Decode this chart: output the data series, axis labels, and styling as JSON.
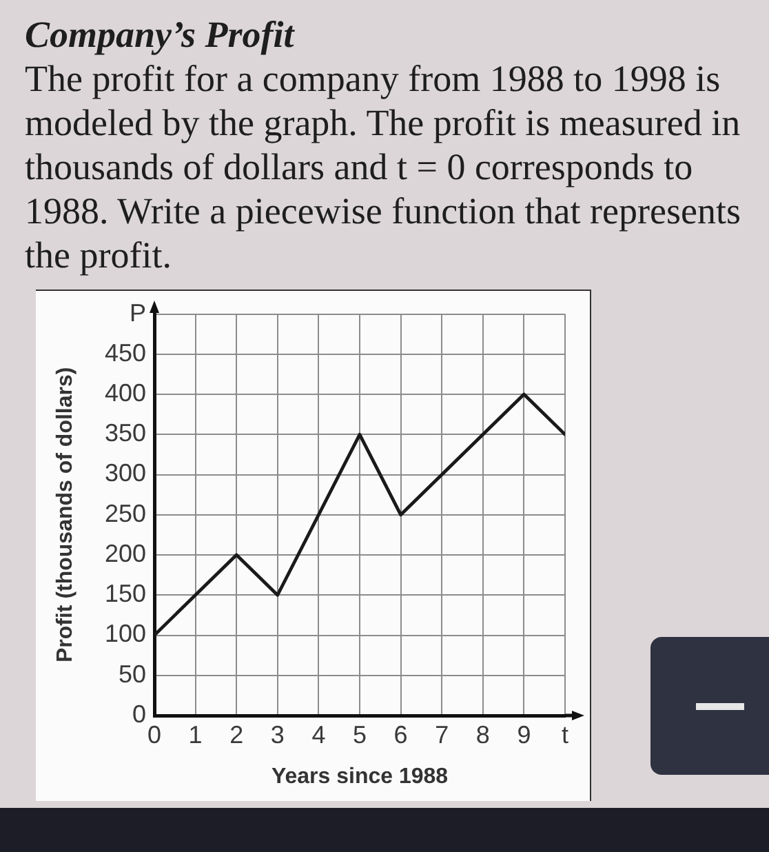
{
  "chart_data": {
    "type": "line",
    "title": "Company’s Profit",
    "subtitle": "The profit for a company from 1988 to 1998 is modeled by the graph. The profit is measured in thousands of dollars and t = 0 corresponds to 1988. Write a piecewise function that represents the profit.",
    "xlabel": "Years since 1988",
    "ylabel": "Profit (thousands of dollars)",
    "x": [
      0,
      2,
      3,
      5,
      6,
      9,
      10
    ],
    "series": [
      {
        "color": "#1a1a1a",
        "values": [
          100,
          200,
          150,
          350,
          250,
          400,
          350
        ]
      }
    ],
    "xlim": [
      0,
      10
    ],
    "xticks": [
      0,
      1,
      2,
      3,
      4,
      5,
      6,
      7,
      8,
      9,
      {
        "value": 10,
        "label": "t"
      }
    ],
    "ylim": [
      0,
      500
    ],
    "yticks": [
      0,
      50,
      100,
      150,
      200,
      250,
      300,
      350,
      400,
      450,
      {
        "value": 500,
        "label": "P"
      }
    ],
    "grid": true,
    "marker": "none",
    "line_style": "solid"
  }
}
